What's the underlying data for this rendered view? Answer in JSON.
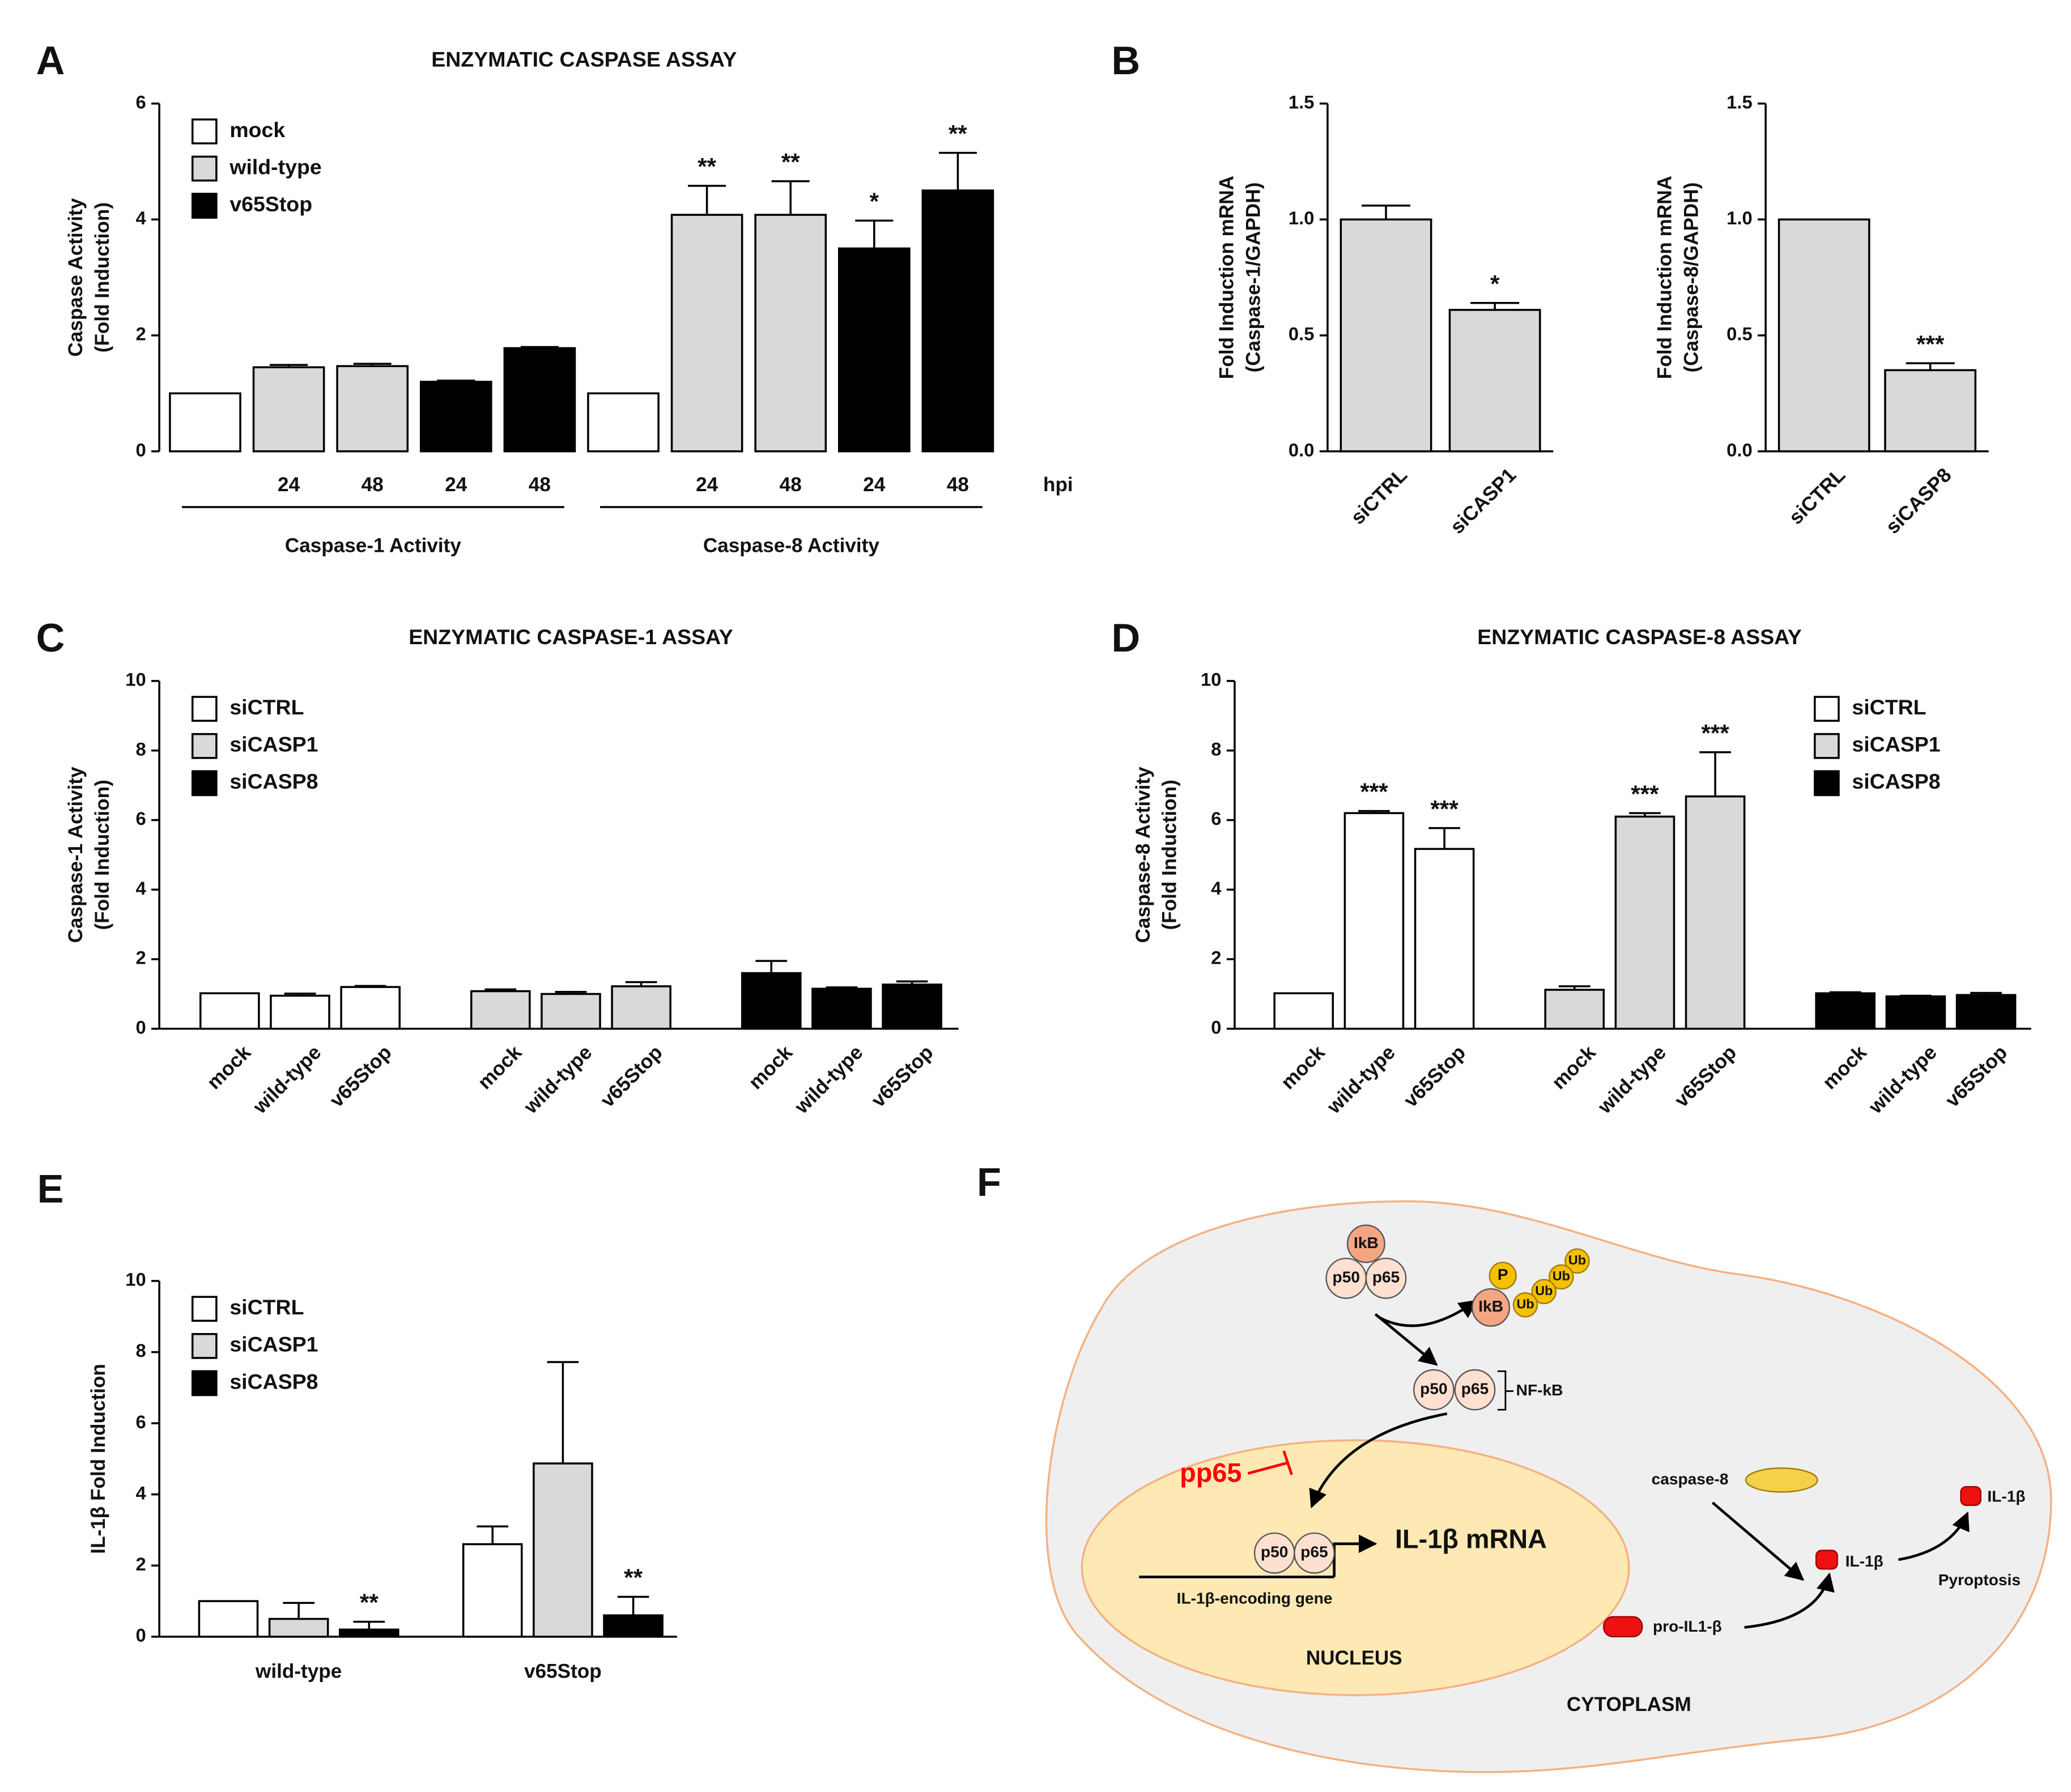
{
  "chart_data": [
    {
      "type": "bar",
      "panel": "A",
      "title": "ENZYMATIC CASPASE ASSAY",
      "ylabel": [
        "Caspase Activity",
        "(Fold Induction)"
      ],
      "categories": [
        null,
        "24",
        "48",
        "24",
        "48",
        null,
        "24",
        "48",
        "24",
        "48"
      ],
      "x_unit": "hpi",
      "groups": [
        "Caspase-1 Activity",
        "Caspase-8 Activity"
      ],
      "series": [
        {
          "name": "mock",
          "color": "#ffffff",
          "values": [
            1,
            null,
            null,
            null,
            null,
            1,
            null,
            null,
            null,
            null
          ]
        },
        {
          "name": "wild-type",
          "color": "#d9d9d9",
          "values": [
            null,
            1.45,
            1.47,
            null,
            null,
            null,
            4.08,
            4.08,
            null,
            null
          ],
          "errors": [
            null,
            0.04,
            0.04,
            null,
            null,
            null,
            0.5,
            0.58,
            null,
            null
          ],
          "significance": [
            null,
            null,
            null,
            null,
            null,
            null,
            "**",
            "**",
            null,
            null
          ]
        },
        {
          "name": "v65Stop",
          "color": "#000000",
          "values": [
            null,
            null,
            null,
            1.2,
            1.78,
            null,
            null,
            null,
            3.5,
            4.5
          ],
          "errors": [
            null,
            null,
            null,
            0.02,
            0.02,
            null,
            null,
            null,
            0.48,
            0.65
          ],
          "significance": [
            null,
            null,
            null,
            null,
            null,
            null,
            null,
            null,
            "*",
            "**"
          ]
        }
      ],
      "ylim": [
        0,
        6
      ],
      "yticks": [
        0,
        2,
        4,
        6
      ],
      "legend": "upper left"
    },
    {
      "type": "bar",
      "panel": "B",
      "ylabel": [
        "Fold Induction mRNA",
        "(Caspase-1/GAPDH)"
      ],
      "categories": [
        "siCTRL",
        "siCASP1"
      ],
      "series": [
        {
          "color": "#d9d9d9",
          "values": [
            1.0,
            0.61
          ],
          "errors": [
            0.06,
            0.03
          ],
          "significance": [
            null,
            "*"
          ]
        }
      ],
      "ylim": [
        0,
        1.5
      ],
      "yticks": [
        {
          "value": 0,
          "label": "0.0"
        },
        {
          "value": 0.5,
          "label": "0.5"
        },
        {
          "value": 1,
          "label": "1.0"
        },
        {
          "value": 1.5,
          "label": "1.5"
        }
      ]
    },
    {
      "type": "bar",
      "ylabel": [
        "Fold Induction mRNA",
        "(Caspase-8/GAPDH)"
      ],
      "categories": [
        "siCTRL",
        "siCASP8"
      ],
      "series": [
        {
          "color": "#d9d9d9",
          "values": [
            1.0,
            0.35
          ],
          "errors": [
            null,
            0.03
          ],
          "significance": [
            null,
            "***"
          ]
        }
      ],
      "ylim": [
        0,
        1.5
      ],
      "yticks": [
        {
          "value": 0,
          "label": "0.0"
        },
        {
          "value": 0.5,
          "label": "0.5"
        },
        {
          "value": 1,
          "label": "1.0"
        },
        {
          "value": 1.5,
          "label": "1.5"
        }
      ]
    },
    {
      "type": "bar",
      "panel": "C",
      "title": "ENZYMATIC CASPASE-1 ASSAY",
      "ylabel": [
        "Caspase-1 Activity",
        "(Fold Induction)"
      ],
      "categories": [
        "mock",
        "wild-type",
        "v65Stop",
        "mock",
        "wild-type",
        "v65Stop",
        "mock",
        "wild-type",
        "v65Stop"
      ],
      "series": [
        {
          "name": "siCTRL",
          "color": "#ffffff",
          "values": [
            1.02,
            0.95,
            1.2,
            null,
            null,
            null,
            null,
            null,
            null
          ],
          "errors": [
            null,
            0.06,
            0.03,
            null,
            null,
            null,
            null,
            null,
            null
          ]
        },
        {
          "name": "siCASP1",
          "color": "#d9d9d9",
          "values": [
            null,
            null,
            null,
            1.08,
            1.0,
            1.22,
            null,
            null,
            null
          ],
          "errors": [
            null,
            null,
            null,
            0.05,
            0.06,
            0.12,
            null,
            null,
            null
          ]
        },
        {
          "name": "siCASP8",
          "color": "#000000",
          "values": [
            null,
            null,
            null,
            null,
            null,
            null,
            1.6,
            1.15,
            1.27
          ],
          "errors": [
            null,
            null,
            null,
            null,
            null,
            null,
            0.35,
            0.04,
            0.09
          ]
        }
      ],
      "ylim": [
        0,
        10
      ],
      "yticks": [
        0,
        2,
        4,
        6,
        8,
        10
      ],
      "legend": "upper left"
    },
    {
      "type": "bar",
      "panel": "D",
      "title": "ENZYMATIC CASPASE-8 ASSAY",
      "ylabel": [
        "Caspase-8 Activity",
        "(Fold Induction)"
      ],
      "categories": [
        "mock",
        "wild-type",
        "v65Stop",
        "mock",
        "wild-type",
        "v65Stop",
        "mock",
        "wild-type",
        "v65Stop"
      ],
      "series": [
        {
          "name": "siCTRL",
          "color": "#ffffff",
          "values": [
            1.02,
            6.2,
            5.17,
            null,
            null,
            null,
            null,
            null,
            null
          ],
          "errors": [
            null,
            0.06,
            0.6,
            null,
            null,
            null,
            null,
            null,
            null
          ],
          "significance": [
            null,
            "***",
            "***",
            null,
            null,
            null,
            null,
            null,
            null
          ]
        },
        {
          "name": "siCASP1",
          "color": "#d9d9d9",
          "values": [
            null,
            null,
            null,
            1.12,
            6.1,
            6.68,
            null,
            null,
            null
          ],
          "errors": [
            null,
            null,
            null,
            0.1,
            0.1,
            1.27,
            null,
            null,
            null
          ],
          "significance": [
            null,
            null,
            null,
            null,
            "***",
            "***",
            null,
            null,
            null
          ]
        },
        {
          "name": "siCASP8",
          "color": "#000000",
          "values": [
            null,
            null,
            null,
            null,
            null,
            null,
            1.02,
            0.93,
            0.97
          ],
          "errors": [
            null,
            null,
            null,
            null,
            null,
            null,
            0.03,
            0.02,
            0.06
          ]
        }
      ],
      "ylim": [
        0,
        10
      ],
      "yticks": [
        0,
        2,
        4,
        6,
        8,
        10
      ],
      "legend": "upper right"
    },
    {
      "type": "bar",
      "panel": "E",
      "ylabel": [
        "IL-1β Fold Induction"
      ],
      "categories": [
        "wild-type",
        "v65Stop"
      ],
      "series": [
        {
          "name": "siCTRL",
          "color": "#ffffff",
          "values": [
            1.0,
            2.6
          ],
          "errors": [
            null,
            0.5
          ]
        },
        {
          "name": "siCASP1",
          "color": "#d9d9d9",
          "values": [
            0.5,
            4.87
          ],
          "errors": [
            0.45,
            2.85
          ]
        },
        {
          "name": "siCASP8",
          "color": "#000000",
          "values": [
            0.2,
            0.6
          ],
          "errors": [
            0.22,
            0.52
          ],
          "significance": [
            "**",
            "**"
          ]
        }
      ],
      "ylim": [
        0,
        10
      ],
      "yticks": [
        0,
        2,
        4,
        6,
        8,
        10
      ],
      "legend": "upper left"
    }
  ],
  "diagram": {
    "panel": "F",
    "labels": [
      "IkB",
      "p50",
      "p65",
      "P",
      "IkB",
      "Ub",
      "Ub",
      "Ub",
      "Ub",
      "p50",
      "p65",
      "NF-kB",
      "pp65",
      "p50",
      "p65",
      "IL-1β mRNA",
      "IL-1β-encoding gene",
      "NUCLEUS",
      "caspase-8",
      "IL-1β",
      "pro-IL1-β",
      "IL-1β",
      "Pyroptosis",
      "CYTOPLASM"
    ]
  }
}
